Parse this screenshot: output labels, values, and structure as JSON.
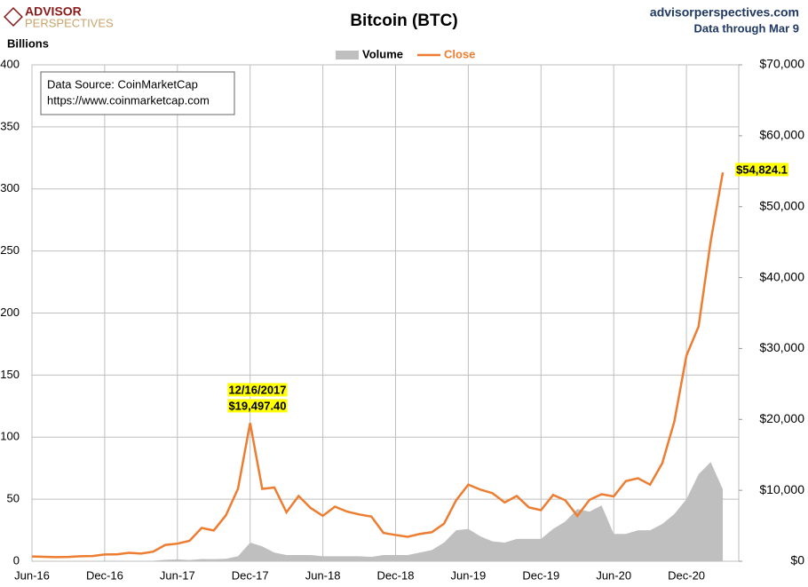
{
  "brand": {
    "line1": "ADVISOR",
    "line2": "PERSPECTIVES"
  },
  "site": "advisorperspectives.com",
  "note": "Data through Mar 9",
  "source": [
    "Data Source: CoinMarketCap",
    "https://www.coinmarketcap.com"
  ],
  "chart_data": {
    "type": "area-line",
    "title": "Bitcoin (BTC)",
    "y_label": "Billions",
    "x": [
      "Jun-16",
      "Jul-16",
      "Aug-16",
      "Sep-16",
      "Oct-16",
      "Nov-16",
      "Dec-16",
      "Jan-17",
      "Feb-17",
      "Mar-17",
      "Apr-17",
      "May-17",
      "Jun-17",
      "Jul-17",
      "Aug-17",
      "Sep-17",
      "Oct-17",
      "Nov-17",
      "Dec-17",
      "Jan-18",
      "Feb-18",
      "Mar-18",
      "Apr-18",
      "May-18",
      "Jun-18",
      "Jul-18",
      "Aug-18",
      "Sep-18",
      "Oct-18",
      "Nov-18",
      "Dec-18",
      "Jan-19",
      "Feb-19",
      "Mar-19",
      "Apr-19",
      "May-19",
      "Jun-19",
      "Jul-19",
      "Aug-19",
      "Sep-19",
      "Oct-19",
      "Nov-19",
      "Dec-19",
      "Jan-20",
      "Feb-20",
      "Mar-20",
      "Apr-20",
      "May-20",
      "Jun-20",
      "Jul-20",
      "Aug-20",
      "Sep-20",
      "Oct-20",
      "Nov-20",
      "Dec-20",
      "Jan-21",
      "Feb-21",
      "Mar-21"
    ],
    "xticks": [
      "Jun-16",
      "Dec-16",
      "Jun-17",
      "Dec-17",
      "Jun-18",
      "Dec-18",
      "Jun-19",
      "Dec-19",
      "Jun-20",
      "Dec-20"
    ],
    "series": [
      {
        "name": "Volume",
        "color": "#bfbfbf",
        "axis": "y",
        "values": [
          0.1,
          0.1,
          0.1,
          0.1,
          0.1,
          0.1,
          0.2,
          0.2,
          0.2,
          0.3,
          0.4,
          1.2,
          1.5,
          1,
          1.8,
          1.7,
          2,
          4,
          15,
          12,
          7,
          5,
          5,
          5,
          4,
          4,
          4,
          4,
          3.5,
          5,
          5,
          5,
          7,
          9,
          15,
          25,
          26,
          20,
          16,
          15,
          18,
          18,
          18,
          26,
          32,
          42,
          40,
          45,
          22,
          22,
          25,
          25,
          30,
          38,
          50,
          70,
          80,
          58
        ]
      },
      {
        "name": "Close",
        "color": "#ed7d31",
        "axis": "y2",
        "values": [
          670,
          620,
          575,
          610,
          700,
          740,
          960,
          970,
          1190,
          1080,
          1350,
          2300,
          2480,
          2880,
          4700,
          4340,
          6470,
          10230,
          19497.4,
          10200,
          10400,
          6900,
          9200,
          7500,
          6400,
          7700,
          7000,
          6600,
          6300,
          4000,
          3700,
          3450,
          3850,
          4100,
          5300,
          8600,
          10800,
          10100,
          9600,
          8300,
          9200,
          7600,
          7200,
          9350,
          8600,
          6400,
          8650,
          9450,
          9140,
          11300,
          11700,
          10800,
          13800,
          19700,
          29000,
          33100,
          45100,
          54824.1
        ]
      }
    ],
    "ylim": [
      0,
      400
    ],
    "yticks": [
      0,
      50,
      100,
      150,
      200,
      250,
      300,
      350,
      400
    ],
    "y2lim": [
      0,
      70000
    ],
    "y2ticks": [
      {
        "value": 0,
        "label": "$0"
      },
      {
        "value": 10000,
        "label": "$10,000"
      },
      {
        "value": 20000,
        "label": "$20,000"
      },
      {
        "value": 30000,
        "label": "$30,000"
      },
      {
        "value": 40000,
        "label": "$40,000"
      },
      {
        "value": 50000,
        "label": "$50,000"
      },
      {
        "value": 60000,
        "label": "$60,000"
      },
      {
        "value": 70000,
        "label": "$70,000"
      }
    ],
    "grid": true,
    "legend": "top",
    "annotations": [
      {
        "text": [
          "12/16/2017",
          "$19,497.40"
        ],
        "x": "Dec-17"
      },
      {
        "text": [
          "$54,824.1"
        ],
        "x": "Mar-21"
      }
    ]
  }
}
